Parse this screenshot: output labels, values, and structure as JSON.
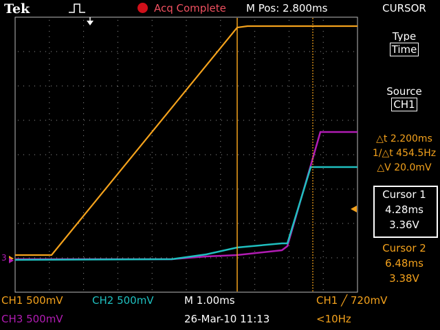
{
  "header": {
    "brand": "Tek",
    "acq_status": "Acq Complete",
    "m_pos": "M Pos: 2.800ms",
    "menu_title": "CURSOR"
  },
  "side_menu": {
    "type_label": "Type",
    "type_value": "Time",
    "source_label": "Source",
    "source_value": "CH1",
    "delta_t": "△t 2.200ms",
    "inv_delta_t": "1/△t 454.5Hz",
    "delta_v": "△V 20.0mV",
    "cursor1": {
      "label": "Cursor 1",
      "time": "4.28ms",
      "volt": "3.36V"
    },
    "cursor2": {
      "label": "Cursor 2",
      "time": "6.48ms",
      "volt": "3.38V"
    }
  },
  "footer": {
    "ch1_scale": "CH1  500mV",
    "ch2_scale": "CH2  500mV",
    "ch3_scale": "CH3  500mV",
    "timebase": "M 1.00ms",
    "date_time": "26-Mar-10 11:13",
    "trigger": "CH1 ╱ 720mV",
    "freq": "<10Hz"
  },
  "markers": {
    "ch_ground_label": "3"
  },
  "colors": {
    "ch1": "#f4a21c",
    "ch2": "#1fc0c0",
    "ch3": "#b21cb4",
    "grid": "#9a9a9a",
    "background": "#000000"
  }
}
